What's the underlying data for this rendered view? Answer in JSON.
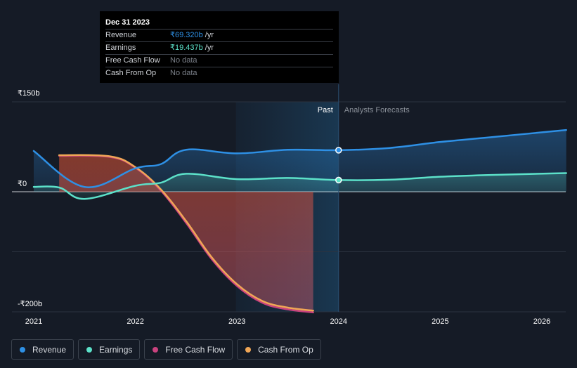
{
  "chart_data": {
    "type": "line",
    "currency": "₹",
    "y_unit": "b",
    "ylim": [
      -200,
      150
    ],
    "y_ticks": [
      {
        "value": 150,
        "label": "₹150b"
      },
      {
        "value": 0,
        "label": "₹0"
      },
      {
        "value": -200,
        "label": "-₹200b"
      }
    ],
    "x_range": [
      2020.9,
      2026.24
    ],
    "x_ticks": [
      {
        "value": 2021,
        "label": "2021"
      },
      {
        "value": 2022,
        "label": "2022"
      },
      {
        "value": 2023,
        "label": "2023"
      },
      {
        "value": 2024,
        "label": "2024"
      },
      {
        "value": 2025,
        "label": "2025"
      },
      {
        "value": 2026,
        "label": "2026"
      }
    ],
    "divider_x": 2024.0,
    "past_label": "Past",
    "forecast_label": "Analysts Forecasts",
    "series": [
      {
        "name": "Revenue",
        "color": "#2e90e5",
        "points": [
          [
            2021.0,
            68
          ],
          [
            2021.5,
            8
          ],
          [
            2022.0,
            39
          ],
          [
            2022.25,
            46
          ],
          [
            2022.5,
            70
          ],
          [
            2023.0,
            64
          ],
          [
            2023.5,
            70
          ],
          [
            2024.0,
            69.32
          ],
          [
            2024.5,
            73
          ],
          [
            2025.0,
            83
          ],
          [
            2025.5,
            91
          ],
          [
            2026.24,
            103
          ]
        ],
        "forecast_from": 2024.0
      },
      {
        "name": "Earnings",
        "color": "#5ce1c9",
        "points": [
          [
            2021.0,
            8
          ],
          [
            2021.25,
            7
          ],
          [
            2021.5,
            -12
          ],
          [
            2022.0,
            10
          ],
          [
            2022.25,
            15
          ],
          [
            2022.5,
            30
          ],
          [
            2023.0,
            21
          ],
          [
            2023.5,
            23
          ],
          [
            2024.0,
            19.437
          ],
          [
            2024.5,
            20
          ],
          [
            2025.0,
            25
          ],
          [
            2025.5,
            28
          ],
          [
            2026.24,
            31
          ]
        ],
        "forecast_from": 2024.0
      },
      {
        "name": "Free Cash Flow",
        "color": "#c9427e",
        "points": [
          [
            2021.25,
            60
          ],
          [
            2021.75,
            58
          ],
          [
            2022.0,
            40
          ],
          [
            2022.25,
            2
          ],
          [
            2022.5,
            -52
          ],
          [
            2022.75,
            -112
          ],
          [
            2023.0,
            -157
          ],
          [
            2023.25,
            -185
          ],
          [
            2023.5,
            -196
          ],
          [
            2023.75,
            -201
          ]
        ]
      },
      {
        "name": "Cash From Op",
        "color": "#f0a656",
        "points": [
          [
            2021.25,
            61
          ],
          [
            2021.75,
            59
          ],
          [
            2022.0,
            41
          ],
          [
            2022.25,
            4
          ],
          [
            2022.5,
            -49
          ],
          [
            2022.75,
            -109
          ],
          [
            2023.0,
            -154
          ],
          [
            2023.25,
            -182
          ],
          [
            2023.5,
            -193
          ],
          [
            2023.75,
            -198
          ]
        ]
      }
    ],
    "highlight": {
      "x": 2024.0,
      "series": [
        "Revenue",
        "Earnings"
      ]
    }
  },
  "tooltip": {
    "date": "Dec 31 2023",
    "rows": [
      {
        "label": "Revenue",
        "value": "₹69.320b",
        "unit": "/yr",
        "color": "#2e90e5"
      },
      {
        "label": "Earnings",
        "value": "₹19.437b",
        "unit": "/yr",
        "color": "#5ce1c9"
      },
      {
        "label": "Free Cash Flow",
        "value": "No data",
        "unit": "",
        "color": ""
      },
      {
        "label": "Cash From Op",
        "value": "No data",
        "unit": "",
        "color": ""
      }
    ]
  },
  "legend": [
    {
      "label": "Revenue",
      "color": "#2e90e5"
    },
    {
      "label": "Earnings",
      "color": "#5ce1c9"
    },
    {
      "label": "Free Cash Flow",
      "color": "#c9427e"
    },
    {
      "label": "Cash From Op",
      "color": "#f0a656"
    }
  ]
}
